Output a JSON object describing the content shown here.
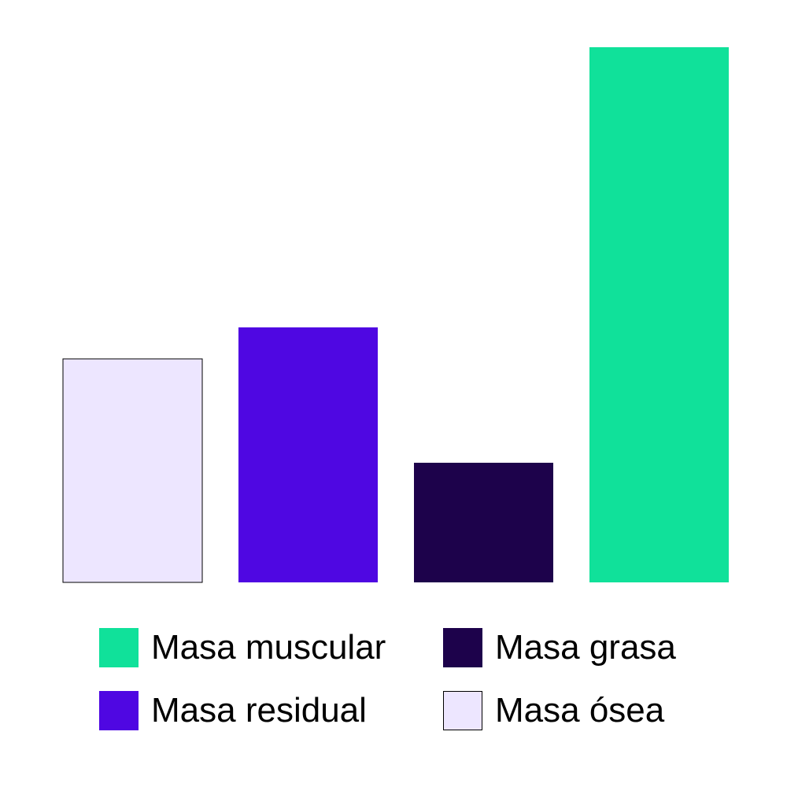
{
  "chart_data": {
    "type": "bar",
    "categories": [
      "Masa ósea",
      "Masa residual",
      "Masa grasa",
      "Masa muscular"
    ],
    "values": [
      14.2,
      16.2,
      7.6,
      34.0
    ],
    "colors": [
      "#ede6ff",
      "#4f07e2",
      "#1d024b",
      "#10e19a"
    ],
    "outline": [
      "#000000",
      null,
      null,
      null
    ],
    "ylim": [
      0,
      36
    ],
    "grid": false,
    "axes_visible": false,
    "legend_placement": "bottom",
    "title": "",
    "xlabel": "",
    "ylabel": ""
  },
  "legend": [
    {
      "label": "Masa muscular",
      "color": "#10e19a"
    },
    {
      "label": "Masa grasa",
      "color": "#1d024b"
    },
    {
      "label": "Masa residual",
      "color": "#4f07e2"
    },
    {
      "label": "Masa ósea",
      "color": "#ede6ff"
    }
  ]
}
